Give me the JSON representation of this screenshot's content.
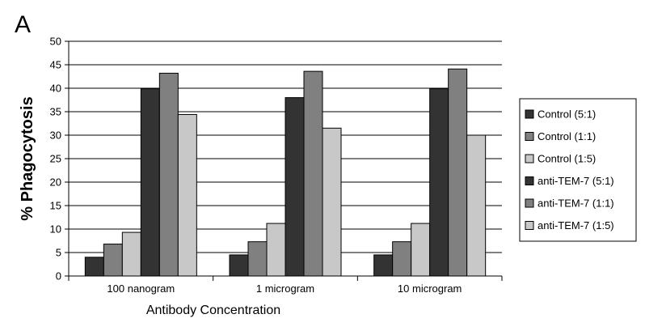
{
  "panel_label": "A",
  "chart_data": {
    "type": "bar",
    "title": "",
    "xlabel": "Antibody Concentration",
    "ylabel": "% Phagocytosis",
    "ylim": [
      0,
      50
    ],
    "yticks": [
      0,
      5,
      10,
      15,
      20,
      25,
      30,
      35,
      40,
      45,
      50
    ],
    "grid": "horizontal",
    "legend_position": "right",
    "categories": [
      "100 nanogram",
      "1 microgram",
      "10 microgram"
    ],
    "series": [
      {
        "name": "Control (5:1)",
        "color": "#333333",
        "values": [
          4.0,
          4.5,
          4.5
        ]
      },
      {
        "name": "Control (1:1)",
        "color": "#808080",
        "values": [
          6.8,
          7.3,
          7.3
        ]
      },
      {
        "name": "Control (1:5)",
        "color": "#c8c8c8",
        "values": [
          9.3,
          11.2,
          11.2
        ]
      },
      {
        "name": "anti-TEM-7 (5:1)",
        "color": "#333333",
        "values": [
          39.9,
          38.0,
          39.9
        ]
      },
      {
        "name": "anti-TEM-7 (1:1)",
        "color": "#808080",
        "values": [
          43.2,
          43.6,
          44.1
        ]
      },
      {
        "name": "anti-TEM-7 (1:5)",
        "color": "#c8c8c8",
        "values": [
          34.4,
          31.5,
          30.0
        ]
      }
    ]
  }
}
